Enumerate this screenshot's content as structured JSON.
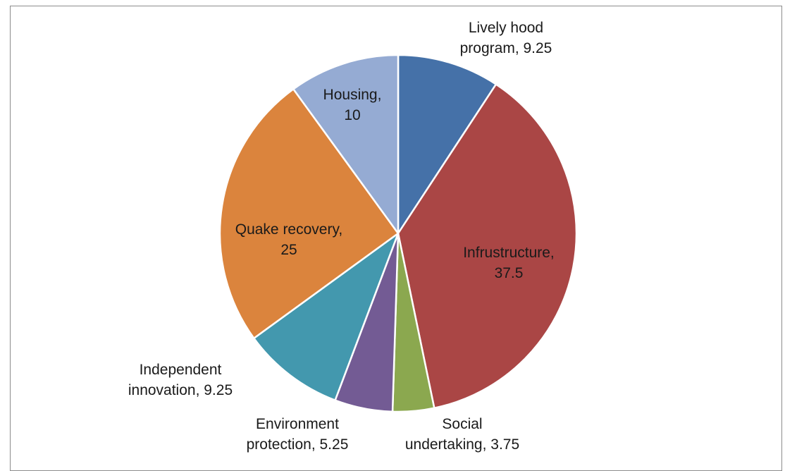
{
  "chart_data": {
    "type": "pie",
    "start_angle_deg": 0,
    "direction": "clockwise",
    "slices": [
      {
        "name": "Lively hood program",
        "value": 9.25,
        "color": "#4571a8",
        "label_lines": [
          "Lively hood",
          "program, 9.25"
        ]
      },
      {
        "name": "Infrustructure",
        "value": 37.5,
        "color": "#aa4645",
        "label_lines": [
          "Infrustructure,",
          "37.5"
        ]
      },
      {
        "name": "Social undertaking",
        "value": 3.75,
        "color": "#8ba84f",
        "label_lines": [
          "Social",
          "undertaking, 3.75"
        ]
      },
      {
        "name": "Environment protection",
        "value": 5.25,
        "color": "#735b94",
        "label_lines": [
          "Environment",
          "protection, 5.25"
        ]
      },
      {
        "name": "Independent innovation",
        "value": 9.25,
        "color": "#4398ae",
        "label_lines": [
          "Independent",
          "innovation, 9.25"
        ]
      },
      {
        "name": "Quake recovery",
        "value": 25,
        "color": "#db843d",
        "label_lines": [
          "Quake recovery,",
          "25"
        ]
      },
      {
        "name": "Housing",
        "value": 10,
        "color": "#95abd3",
        "label_lines": [
          "Housing,",
          "10"
        ]
      }
    ]
  }
}
